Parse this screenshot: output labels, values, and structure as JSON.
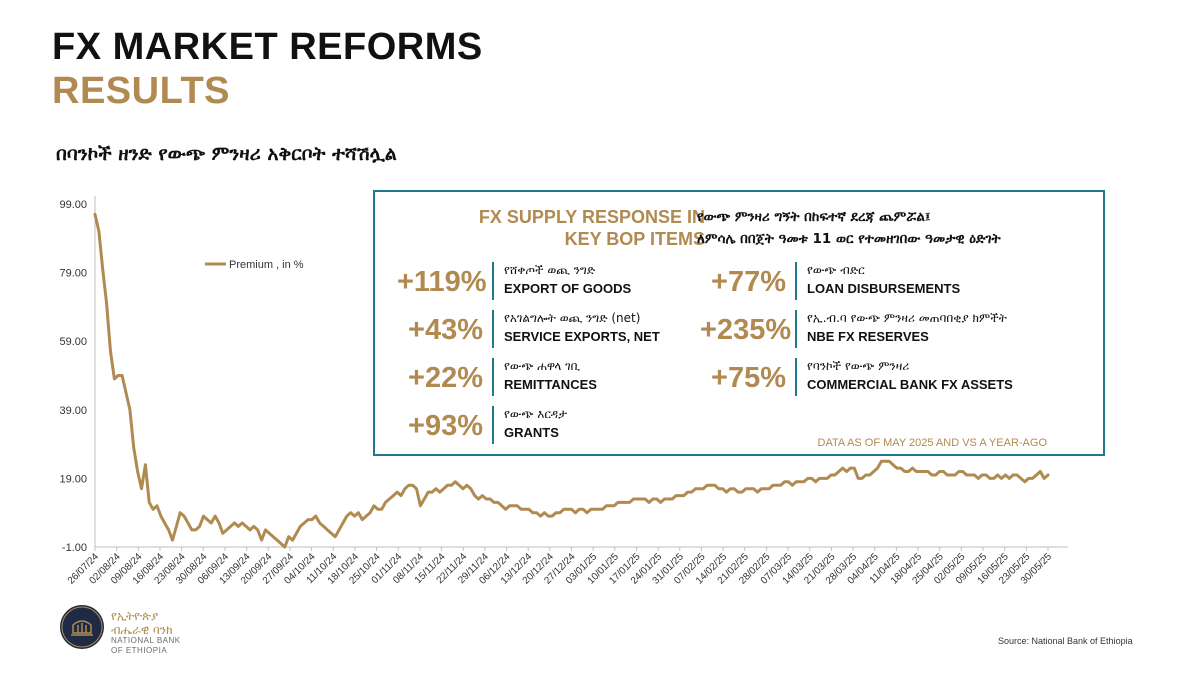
{
  "header": {
    "title_line1": "FX MARKET REFORMS",
    "title_line2": "RESULTS",
    "subtitle": "በባንኮች ዘንድ የውጭ ምንዛሪ አቅርቦት ተሻሽሏል"
  },
  "colors": {
    "gold": "#b08a50",
    "teal": "#1c7a8c",
    "text": "#111111"
  },
  "info_box": {
    "heading_left_line1": "FX SUPPLY RESPONSE IN",
    "heading_left_line2": "KEY BOP ITEMS",
    "heading_right_line1": "የውጭ ምንዛሪ ግኝት በከፍተኛ ደረጃ ጨምሯል፤",
    "heading_right_line2": "ለምሳሌ በበጀት ዓመቱ 11 ወር የተመዘገበው ዓመታዊ ዕድገት",
    "metrics": [
      {
        "value": "+119%",
        "amharic": "የሸቀጦች ወጪ ንግድ",
        "english": "EXPORT OF GOODS"
      },
      {
        "value": "+43%",
        "amharic": "የአገልግሎት ወጪ ንግድ (net)",
        "english": "SERVICE EXPORTS, NET"
      },
      {
        "value": "+22%",
        "amharic": "የውጭ ሐዋላ ገቢ",
        "english": "REMITTANCES"
      },
      {
        "value": "+93%",
        "amharic": "የውጭ እርዳታ",
        "english": "GRANTS"
      },
      {
        "value": "+77%",
        "amharic": "የውጭ ብድር",
        "english": "LOAN DISBURSEMENTS"
      },
      {
        "value": "+235%",
        "amharic": "የኢ.ብ.ባ የውጭ ምንዛሪ መጠባበቂያ ክምችት",
        "english": "NBE FX RESERVES"
      },
      {
        "value": "+75%",
        "amharic": "የባንኮች የውጭ ምንዛሪ",
        "english": "COMMERCIAL BANK FX ASSETS"
      }
    ],
    "note": "DATA AS OF MAY 2025 AND VS A YEAR-AGO"
  },
  "logo": {
    "name_amharic_line1": "የኢትዮጵያ",
    "name_amharic_line2": "ብሔራዊ ባንክ",
    "name_english_line1": "NATIONAL BANK",
    "name_english_line2": "OF ETHIOPIA"
  },
  "source": "Source: National Bank of Ethiopia",
  "chart_data": {
    "type": "line",
    "legend_position": "top-left",
    "grid": false,
    "y_ticks": [
      "99.00",
      "79.00",
      "59.00",
      "39.00",
      "19.00",
      "-1.00"
    ],
    "ylim": [
      -1,
      99
    ],
    "x_tick_labels": [
      "26/07/24",
      "02/08/24",
      "09/08/24",
      "16/08/24",
      "23/08/24",
      "30/08/24",
      "06/09/24",
      "13/09/24",
      "20/09/24",
      "27/09/24",
      "04/10/24",
      "11/10/24",
      "18/10/24",
      "25/10/24",
      "01/11/24",
      "08/11/24",
      "15/11/24",
      "22/11/24",
      "29/11/24",
      "06/12/24",
      "13/12/24",
      "20/12/24",
      "27/12/24",
      "03/01/25",
      "10/01/25",
      "17/01/25",
      "24/01/25",
      "31/01/25",
      "07/02/25",
      "14/02/25",
      "21/02/25",
      "28/02/25",
      "07/03/25",
      "14/03/25",
      "21/03/25",
      "28/03/25",
      "04/04/25",
      "11/04/25",
      "18/04/25",
      "25/04/25",
      "02/05/25",
      "09/05/25",
      "16/05/25",
      "23/05/25",
      "30/05/25"
    ],
    "series": [
      {
        "name": "Premium , in %",
        "color": "#b08a50",
        "values": [
          96,
          91,
          80,
          70,
          56,
          48,
          49,
          49,
          44,
          39,
          28,
          21,
          16,
          23,
          12,
          10,
          11,
          8,
          6,
          4,
          1,
          5,
          9,
          8,
          6,
          4,
          4,
          5,
          8,
          7,
          6,
          8,
          6,
          3,
          4,
          5,
          6,
          5,
          6,
          5,
          4,
          5,
          4,
          1,
          4,
          3,
          2,
          1,
          0,
          -1,
          2,
          1,
          3,
          5,
          6,
          7,
          7,
          8,
          6,
          5,
          4,
          3,
          2,
          4,
          6,
          8,
          9,
          8,
          9,
          7,
          8,
          9,
          11,
          10,
          10,
          12,
          13,
          14,
          15,
          14,
          16,
          17,
          17,
          16,
          11,
          13,
          15,
          15,
          16,
          15,
          16,
          17,
          17,
          18,
          17,
          16,
          17,
          16,
          14,
          13,
          14,
          13,
          13,
          12,
          12,
          11,
          10,
          11,
          11,
          11,
          10,
          10,
          10,
          9,
          9,
          8,
          9,
          8,
          8,
          9,
          9,
          10,
          10,
          10,
          9,
          10,
          10,
          9,
          10,
          10,
          10,
          10,
          11,
          11,
          11,
          12,
          12,
          12,
          12,
          13,
          13,
          13,
          13,
          12,
          13,
          13,
          12,
          13,
          13,
          13,
          14,
          14,
          14,
          15,
          15,
          16,
          16,
          16,
          17,
          17,
          17,
          16,
          16,
          15,
          16,
          16,
          15,
          15,
          16,
          16,
          16,
          15,
          16,
          16,
          16,
          17,
          17,
          17,
          18,
          18,
          17,
          18,
          18,
          18,
          19,
          19,
          18,
          19,
          19,
          19,
          20,
          20,
          21,
          22,
          21,
          22,
          22,
          19,
          19,
          20,
          20,
          21,
          22,
          24,
          24,
          24,
          23,
          22,
          22,
          21,
          21,
          22,
          21,
          21,
          21,
          21,
          20,
          20,
          21,
          21,
          20,
          20,
          20,
          21,
          21,
          20,
          20,
          20,
          19,
          20,
          20,
          19,
          19,
          20,
          19,
          20,
          19,
          20,
          20,
          19,
          18,
          19,
          19,
          20,
          21,
          19,
          20
        ]
      }
    ]
  }
}
